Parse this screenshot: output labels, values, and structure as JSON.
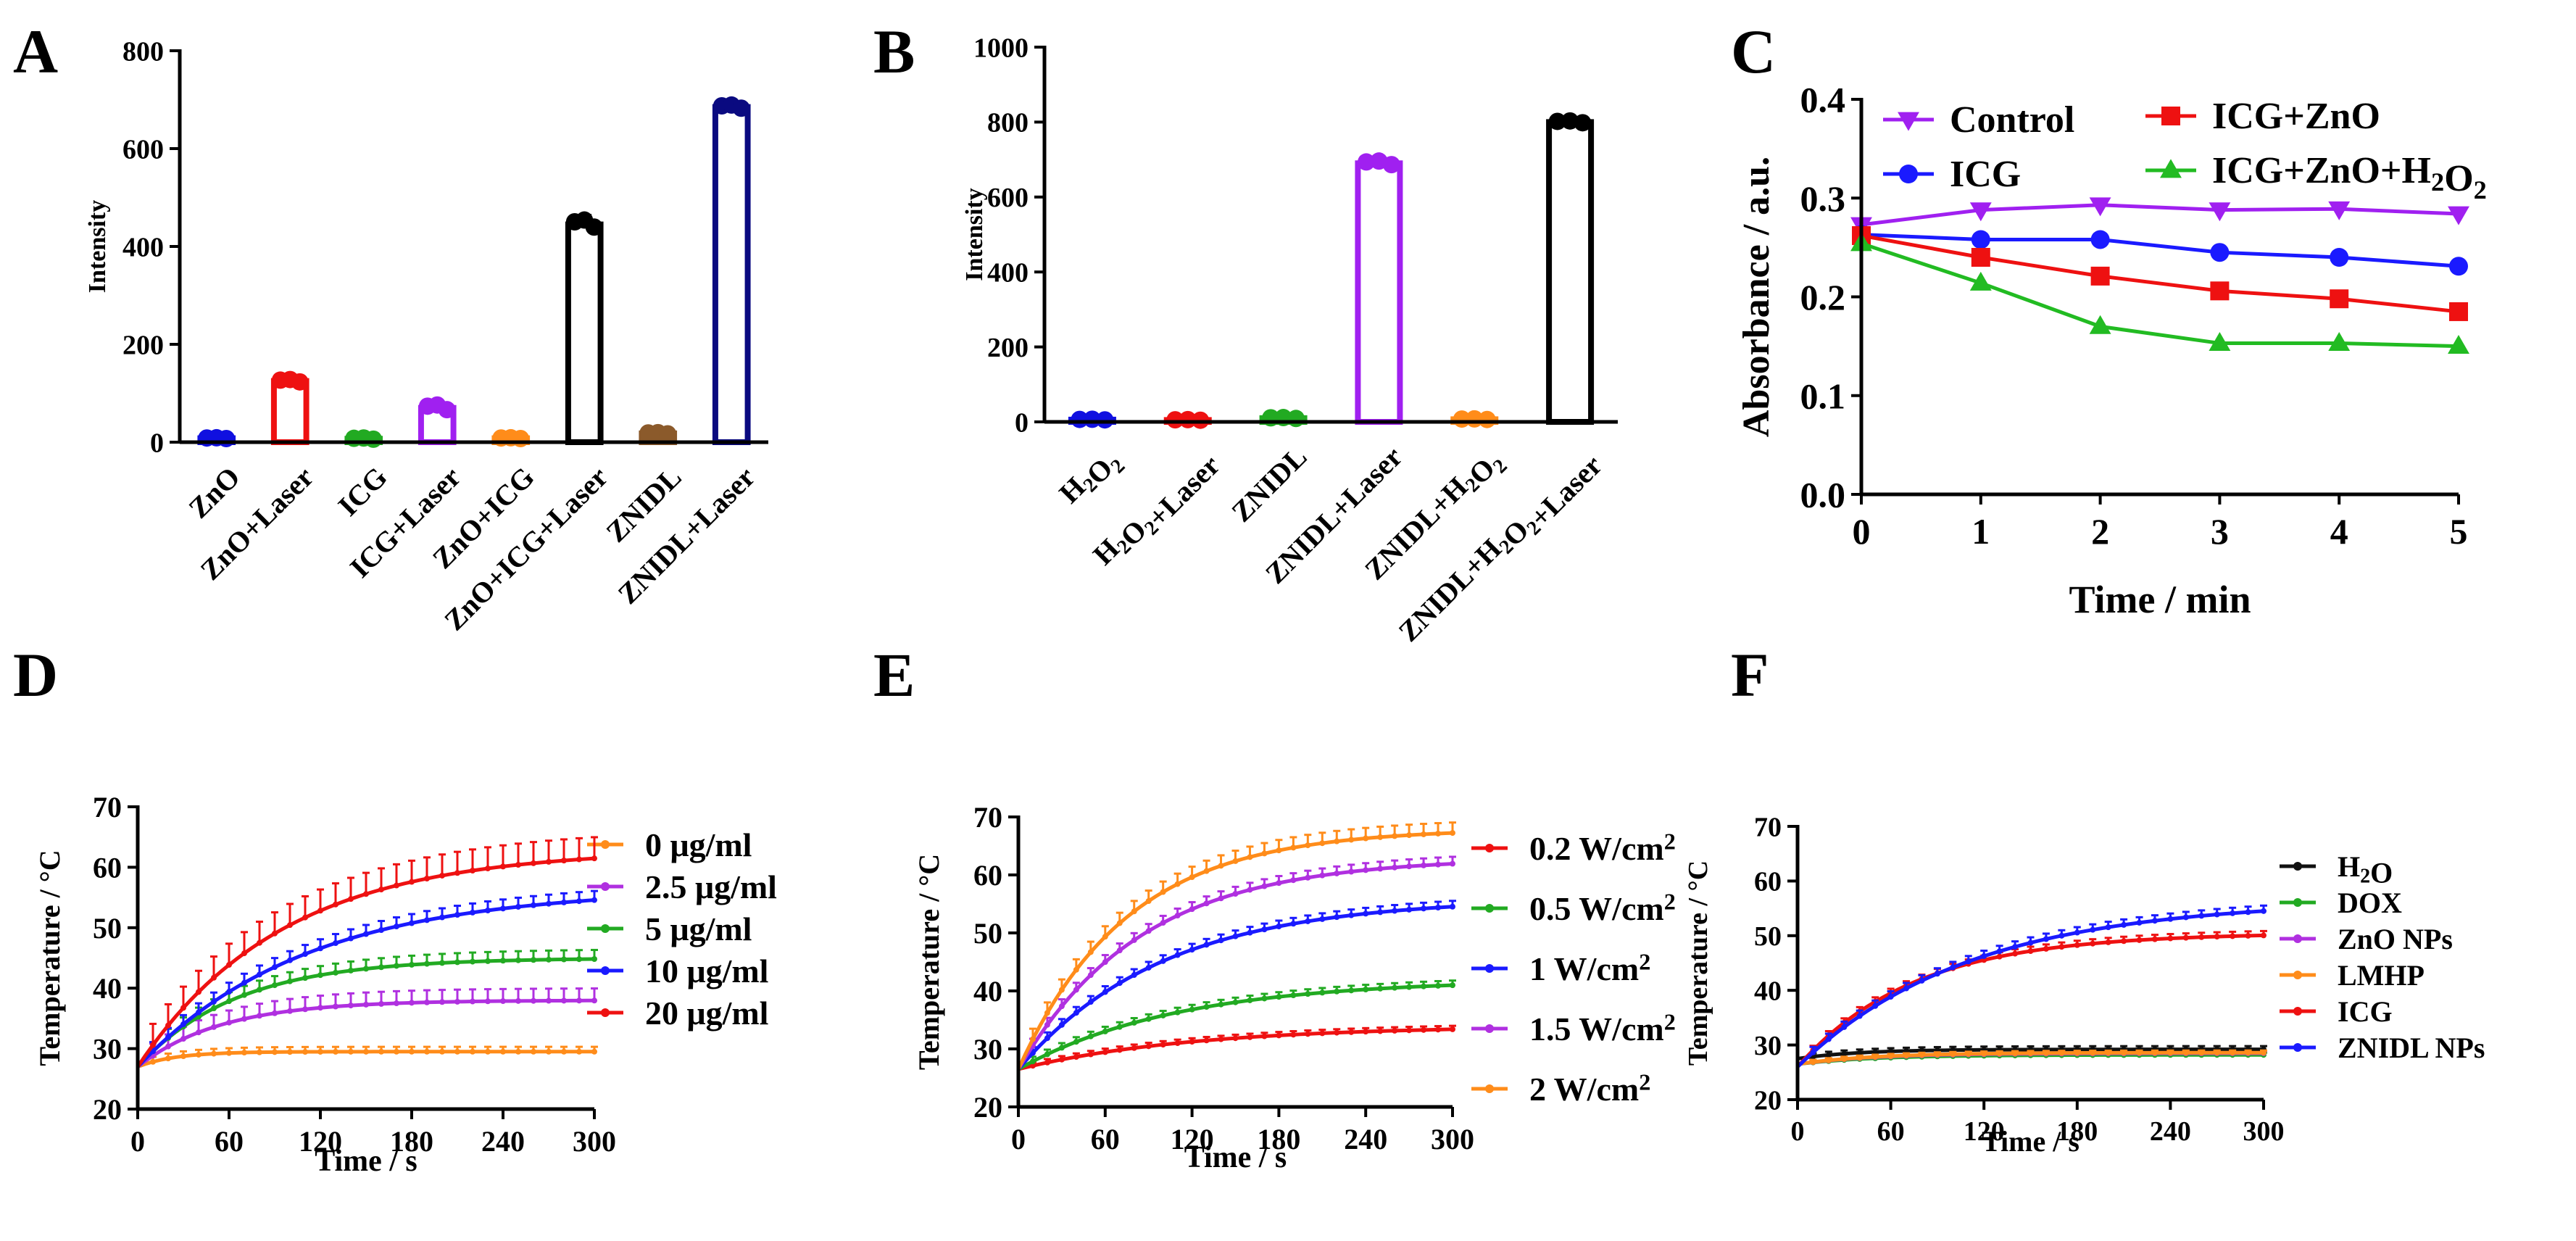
{
  "panels": {
    "A": {
      "letter": "A"
    },
    "B": {
      "letter": "B"
    },
    "C": {
      "letter": "C"
    },
    "D": {
      "letter": "D"
    },
    "E": {
      "letter": "E"
    },
    "F": {
      "letter": "F"
    }
  },
  "chart_data": [
    {
      "panel": "A",
      "type": "bar",
      "ylabel": "Intensity",
      "xlabel": "",
      "ylim": [
        0,
        800
      ],
      "yticks": [
        "0",
        "200",
        "400",
        "600",
        "800"
      ],
      "categories": [
        "ZnO",
        "ZnO+Laser",
        "ICG",
        "ICG+Laser",
        "ZnO+ICG",
        "ZnO+ICG+Laser",
        "ZNIDL",
        "ZNIDL+Laser"
      ],
      "values": [
        8,
        125,
        7,
        70,
        8,
        445,
        18,
        685
      ],
      "errors": [
        2,
        6,
        3,
        12,
        2,
        18,
        3,
        8
      ],
      "colors": [
        "#1010e0",
        "#ee1111",
        "#22aa22",
        "#a020f0",
        "#ff8c1a",
        "#000000",
        "#8b5a2b",
        "#0a0a80"
      ]
    },
    {
      "panel": "B",
      "type": "bar",
      "ylabel": "Intensity",
      "xlabel": "",
      "ylim": [
        0,
        1000
      ],
      "yticks": [
        "0",
        "200",
        "400",
        "600",
        "800",
        "1000"
      ],
      "categories": [
        "H2O2",
        "H2O2+Laser",
        "ZNIDL",
        "ZNIDL+Laser",
        "ZNIDL+H2O2",
        "ZNIDL+H2O2+Laser"
      ],
      "values": [
        6,
        5,
        10,
        690,
        7,
        800
      ],
      "errors": [
        2,
        2,
        3,
        12,
        2,
        6
      ],
      "colors": [
        "#1010e0",
        "#ee1111",
        "#22aa22",
        "#a020f0",
        "#ff8c1a",
        "#000000"
      ]
    },
    {
      "panel": "C",
      "type": "line",
      "xlabel": "Time / min",
      "ylabel": "Absorbance / a.u.",
      "xlim": [
        0,
        5
      ],
      "ylim": [
        0,
        0.4
      ],
      "xticks": [
        "0",
        "1",
        "2",
        "3",
        "4",
        "5"
      ],
      "yticks": [
        "0.0",
        "0.1",
        "0.2",
        "0.3",
        "0.4"
      ],
      "x": [
        0,
        1,
        2,
        3,
        4,
        5
      ],
      "series": [
        {
          "name": "Control",
          "color": "#a020f0",
          "marker": "tri-down",
          "values": [
            0.273,
            0.288,
            0.293,
            0.288,
            0.289,
            0.284
          ]
        },
        {
          "name": "ICG",
          "color": "#1a1aff",
          "marker": "circle",
          "values": [
            0.263,
            0.258,
            0.258,
            0.245,
            0.24,
            0.231
          ]
        },
        {
          "name": "ICG+ZnO",
          "color": "#ee1111",
          "marker": "square",
          "values": [
            0.262,
            0.24,
            0.221,
            0.206,
            0.198,
            0.185
          ]
        },
        {
          "name": "ICG+ZnO+H2O2",
          "color": "#22bb22",
          "marker": "tri-up",
          "values": [
            0.254,
            0.214,
            0.17,
            0.153,
            0.153,
            0.15
          ]
        }
      ]
    },
    {
      "panel": "D",
      "type": "line",
      "xlabel": "Time / s",
      "ylabel": "Temperature / °C",
      "xlim": [
        0,
        300
      ],
      "ylim": [
        20,
        70
      ],
      "xticks": [
        "0",
        "60",
        "120",
        "180",
        "240",
        "300"
      ],
      "yticks": [
        "20",
        "30",
        "40",
        "50",
        "60",
        "70"
      ],
      "series": [
        {
          "name": "0 μg/ml",
          "color": "#ff8c1a",
          "start": 27,
          "plateau": 29.5,
          "tau": 25,
          "err": 0.8
        },
        {
          "name": "2.5 μg/ml",
          "color": "#b030e0",
          "start": 27,
          "plateau": 38,
          "tau": 55,
          "err": 2.0
        },
        {
          "name": "5 μg/ml",
          "color": "#22aa22",
          "start": 27,
          "plateau": 45,
          "tau": 65,
          "err": 1.5
        },
        {
          "name": "10 μg/ml",
          "color": "#1a1aff",
          "start": 27,
          "plateau": 56.5,
          "tau": 110,
          "err": 1.5
        },
        {
          "name": "20 μg/ml",
          "color": "#ee1111",
          "start": 27,
          "plateau": 63,
          "tau": 95,
          "err": 3.5
        }
      ]
    },
    {
      "panel": "E",
      "type": "line",
      "xlabel": "Time / s",
      "ylabel": "Temperature / °C",
      "xlim": [
        0,
        300
      ],
      "ylim": [
        20,
        70
      ],
      "xticks": [
        "0",
        "60",
        "120",
        "180",
        "240",
        "300"
      ],
      "yticks": [
        "20",
        "30",
        "40",
        "50",
        "60",
        "70"
      ],
      "series": [
        {
          "name": "0.2 W/cm2",
          "color": "#ee1111",
          "start": 26.5,
          "plateau": 34,
          "tau": 120,
          "err": 0.6
        },
        {
          "name": "0.5 W/cm2",
          "color": "#22aa22",
          "start": 26.5,
          "plateau": 42,
          "tau": 110,
          "err": 0.8
        },
        {
          "name": "1 W/cm2",
          "color": "#1a1aff",
          "start": 26.5,
          "plateau": 56,
          "tau": 100,
          "err": 1.0
        },
        {
          "name": "1.5 W/cm2",
          "color": "#b030e0",
          "start": 26.5,
          "plateau": 63,
          "tau": 85,
          "err": 1.2
        },
        {
          "name": "2 W/cm2",
          "color": "#ff8c1a",
          "start": 26.5,
          "plateau": 68,
          "tau": 75,
          "err": 1.8
        }
      ]
    },
    {
      "panel": "F",
      "type": "line",
      "xlabel": "Time / s",
      "ylabel": "Temperature / °C",
      "xlim": [
        0,
        300
      ],
      "ylim": [
        20,
        70
      ],
      "xticks": [
        "0",
        "60",
        "120",
        "180",
        "240",
        "300"
      ],
      "yticks": [
        "20",
        "30",
        "40",
        "50",
        "60",
        "70"
      ],
      "series": [
        {
          "name": "H2O",
          "color": "#111111",
          "start": 27.5,
          "plateau": 29.2,
          "tau": 40,
          "err": 0.6
        },
        {
          "name": "DOX",
          "color": "#22aa22",
          "start": 26.5,
          "plateau": 28.2,
          "tau": 50,
          "err": 0.4
        },
        {
          "name": "ZnO NPs",
          "color": "#b030e0",
          "start": 26.5,
          "plateau": 28.5,
          "tau": 50,
          "err": 0.4
        },
        {
          "name": "LMHP",
          "color": "#ff8c1a",
          "start": 26.5,
          "plateau": 28.6,
          "tau": 50,
          "err": 0.4
        },
        {
          "name": "ICG",
          "color": "#ee1111",
          "start": 26.0,
          "plateau": 50.5,
          "tau": 75,
          "err": 0.8
        },
        {
          "name": "ZNIDL NPs",
          "color": "#1a1aff",
          "start": 26.0,
          "plateau": 56.5,
          "tau": 110,
          "err": 1.0
        }
      ]
    }
  ]
}
